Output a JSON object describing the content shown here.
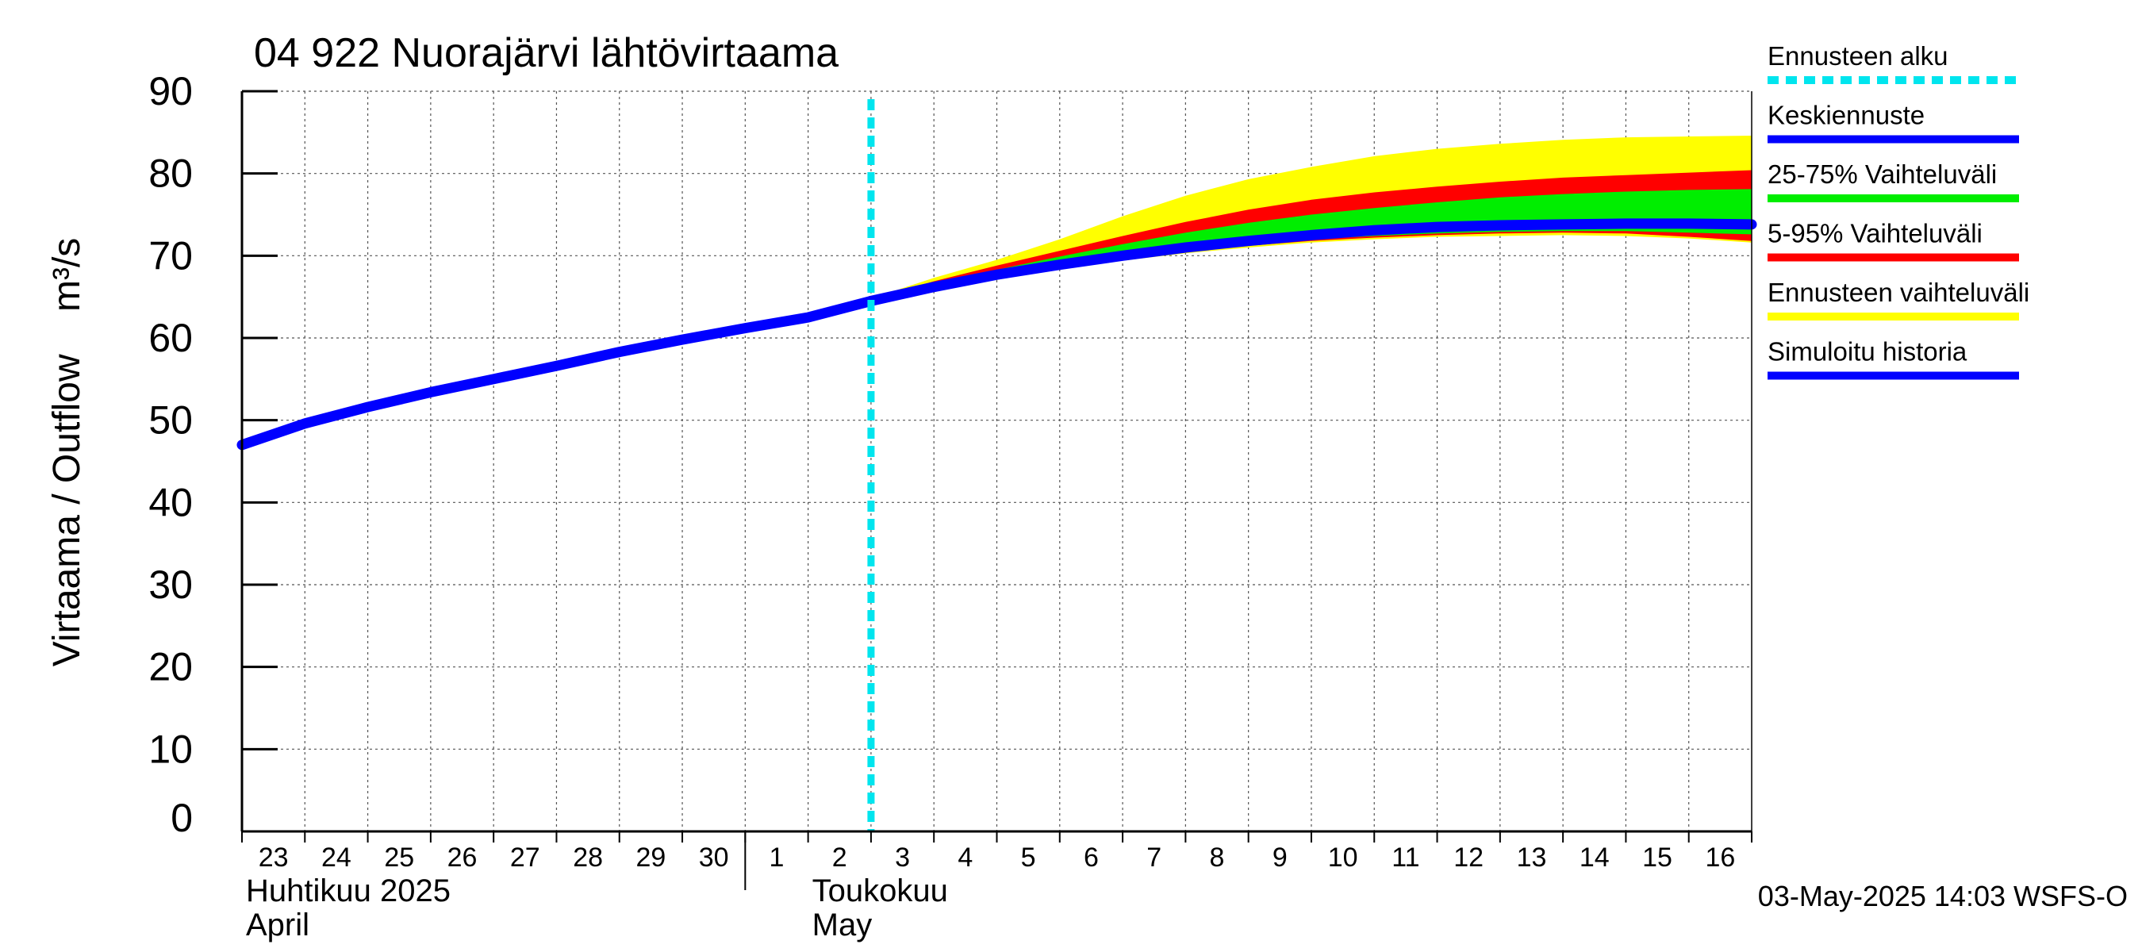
{
  "chart_data": {
    "type": "area",
    "title": "04 922 Nuorajärvi lähtövirtaama",
    "ylabel": "Virtaama / Outflow    m³/s",
    "ylim": [
      0,
      90
    ],
    "yticks": [
      0,
      10,
      20,
      30,
      40,
      50,
      60,
      70,
      80,
      90
    ],
    "xlim_days": [
      0,
      24
    ],
    "xtick_labels": [
      "23",
      "24",
      "25",
      "26",
      "27",
      "28",
      "29",
      "30",
      "1",
      "2",
      "3",
      "4",
      "5",
      "6",
      "7",
      "8",
      "9",
      "10",
      "11",
      "12",
      "13",
      "14",
      "15",
      "16"
    ],
    "month_labels": [
      {
        "line1": "Huhtikuu  2025",
        "line2": "April",
        "day": 0
      },
      {
        "line1": "Toukokuu",
        "line2": "May",
        "day": 9
      }
    ],
    "month_boundary_day": 8,
    "forecast_start_day": 10.0,
    "grid": true,
    "legend_position": "right",
    "legend": [
      {
        "label": "Ennusteen alku",
        "color": "#00e5ee",
        "style": "dashed"
      },
      {
        "label": "Keskiennuste",
        "color": "#0000ff",
        "style": "solid"
      },
      {
        "label": "25-75% Vaihteluväli",
        "color": "#00ee00",
        "style": "solid"
      },
      {
        "label": "5-95% Vaihteluväli",
        "color": "#ff0000",
        "style": "solid"
      },
      {
        "label": "Ennusteen vaihteluväli",
        "color": "#ffff00",
        "style": "solid"
      },
      {
        "label": "Simuloitu historia",
        "color": "#0000ff",
        "style": "solid"
      }
    ],
    "series": [
      {
        "name": "Simuloitu historia",
        "color": "#0000ff",
        "x": [
          0,
          1,
          2,
          3,
          4,
          5,
          6,
          7,
          8,
          9,
          10
        ],
        "y": [
          47.0,
          49.6,
          51.6,
          53.4,
          55.0,
          56.6,
          58.3,
          59.8,
          61.2,
          62.5,
          64.5
        ]
      },
      {
        "name": "Keskiennuste",
        "color": "#0000ff",
        "x": [
          10,
          11,
          12,
          13,
          14,
          15,
          16,
          17,
          18,
          19,
          20,
          21,
          22,
          23,
          24
        ],
        "y": [
          64.5,
          66.2,
          67.7,
          68.9,
          70.0,
          71.0,
          71.8,
          72.5,
          73.1,
          73.5,
          73.7,
          73.8,
          73.9,
          73.9,
          73.8
        ]
      }
    ],
    "bands": [
      {
        "name": "Ennusteen vaihteluväli",
        "color": "#ffff00",
        "x": [
          10,
          11,
          12,
          13,
          14,
          15,
          16,
          17,
          18,
          19,
          20,
          21,
          22,
          23,
          24
        ],
        "lower": [
          64.2,
          65.8,
          67.3,
          68.4,
          69.4,
          70.3,
          71.0,
          71.6,
          72.0,
          72.3,
          72.4,
          72.5,
          72.4,
          72.1,
          71.6
        ],
        "upper": [
          64.8,
          67.3,
          69.5,
          72.0,
          74.8,
          77.3,
          79.3,
          80.8,
          82.1,
          83.0,
          83.6,
          84.1,
          84.4,
          84.5,
          84.6
        ]
      },
      {
        "name": "5-95% Vaihteluväli",
        "color": "#ff0000",
        "x": [
          10,
          11,
          12,
          13,
          14,
          15,
          16,
          17,
          18,
          19,
          20,
          21,
          22,
          23,
          24
        ],
        "lower": [
          64.3,
          65.9,
          67.4,
          68.5,
          69.6,
          70.5,
          71.2,
          71.8,
          72.2,
          72.5,
          72.7,
          72.8,
          72.7,
          72.3,
          71.8
        ],
        "upper": [
          64.7,
          66.9,
          68.8,
          70.6,
          72.4,
          74.1,
          75.6,
          76.8,
          77.7,
          78.4,
          79.0,
          79.5,
          79.8,
          80.1,
          80.4
        ]
      },
      {
        "name": "25-75% Vaihteluväli",
        "color": "#00ee00",
        "x": [
          10,
          11,
          12,
          13,
          14,
          15,
          16,
          17,
          18,
          19,
          20,
          21,
          22,
          23,
          24
        ],
        "lower": [
          64.4,
          66.0,
          67.5,
          68.7,
          69.8,
          70.7,
          71.4,
          72.0,
          72.4,
          72.7,
          72.9,
          73.0,
          73.0,
          72.8,
          72.6
        ],
        "upper": [
          64.6,
          66.5,
          68.3,
          69.9,
          71.4,
          72.8,
          74.0,
          75.0,
          75.8,
          76.5,
          77.1,
          77.5,
          77.8,
          78.0,
          78.1
        ]
      }
    ]
  },
  "footer": {
    "timestamp": "03-May-2025 14:03 WSFS-O"
  }
}
